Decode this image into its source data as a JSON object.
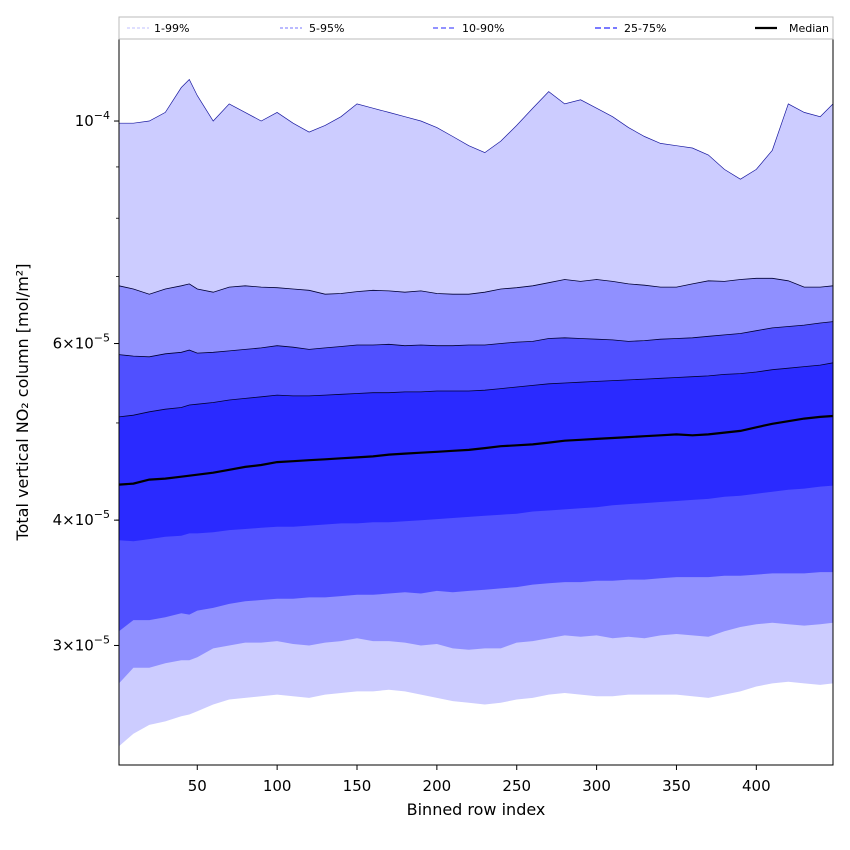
{
  "chart_data": {
    "type": "area",
    "title": "",
    "xlabel": "Binned row index",
    "ylabel": "Total vertical NO₂ column [mol/m²]",
    "yscale": "log",
    "xlim": [
      1,
      448
    ],
    "ylim": [
      2.28e-05,
      0.000121
    ],
    "xticks": [
      50,
      100,
      150,
      200,
      250,
      300,
      350,
      400
    ],
    "xtick_labels": [
      "50",
      "100",
      "150",
      "200",
      "250",
      "300",
      "350",
      "400"
    ],
    "yticks": [
      {
        "value": 0.0001,
        "mantissa": "",
        "base": "10",
        "exp": "−4"
      },
      {
        "value": 6e-05,
        "mantissa": "6",
        "base": "10",
        "exp": "−5"
      },
      {
        "value": 4e-05,
        "mantissa": "4",
        "base": "10",
        "exp": "−5"
      },
      {
        "value": 3e-05,
        "mantissa": "3",
        "base": "10",
        "exp": "−5"
      }
    ],
    "x": [
      1,
      10,
      20,
      30,
      40,
      45,
      50,
      60,
      70,
      80,
      90,
      100,
      110,
      120,
      130,
      140,
      150,
      160,
      170,
      180,
      190,
      200,
      210,
      220,
      230,
      240,
      250,
      260,
      270,
      280,
      290,
      300,
      310,
      320,
      330,
      340,
      350,
      360,
      370,
      380,
      390,
      400,
      410,
      420,
      430,
      440,
      448
    ],
    "bands": [
      {
        "name": "1-99%",
        "color": "#ccccff",
        "lower": [
          2.38e-05,
          2.45e-05,
          2.5e-05,
          2.52e-05,
          2.55e-05,
          2.56e-05,
          2.58e-05,
          2.62e-05,
          2.65e-05,
          2.66e-05,
          2.67e-05,
          2.68e-05,
          2.67e-05,
          2.66e-05,
          2.68e-05,
          2.69e-05,
          2.7e-05,
          2.7e-05,
          2.71e-05,
          2.7e-05,
          2.68e-05,
          2.66e-05,
          2.64e-05,
          2.63e-05,
          2.62e-05,
          2.63e-05,
          2.65e-05,
          2.66e-05,
          2.68e-05,
          2.69e-05,
          2.68e-05,
          2.67e-05,
          2.67e-05,
          2.68e-05,
          2.68e-05,
          2.68e-05,
          2.68e-05,
          2.67e-05,
          2.66e-05,
          2.68e-05,
          2.7e-05,
          2.73e-05,
          2.75e-05,
          2.76e-05,
          2.75e-05,
          2.74e-05,
          2.75e-05
        ],
        "upper": [
          9.95e-05,
          9.95e-05,
          0.0001,
          0.000102,
          0.000108,
          0.00011,
          0.000106,
          0.0001,
          0.000104,
          0.000102,
          0.0001,
          0.000102,
          9.95e-05,
          9.75e-05,
          9.9e-05,
          0.000101,
          0.000104,
          0.000103,
          0.000102,
          0.000101,
          0.0001,
          9.85e-05,
          9.65e-05,
          9.45e-05,
          9.3e-05,
          9.55e-05,
          9.9e-05,
          0.000103,
          0.000107,
          0.000104,
          0.000105,
          0.000103,
          0.000101,
          9.85e-05,
          9.65e-05,
          9.5e-05,
          9.45e-05,
          9.4e-05,
          9.25e-05,
          8.95e-05,
          8.75e-05,
          8.95e-05,
          9.35e-05,
          0.000104,
          0.000102,
          0.000101,
          0.000104
        ]
      },
      {
        "name": "5-95%",
        "color": "#9090ff",
        "lower": [
          2.75e-05,
          2.85e-05,
          2.85e-05,
          2.88e-05,
          2.9e-05,
          2.9e-05,
          2.92e-05,
          2.98e-05,
          3e-05,
          3.02e-05,
          3.02e-05,
          3.03e-05,
          3.01e-05,
          3e-05,
          3.02e-05,
          3.03e-05,
          3.05e-05,
          3.03e-05,
          3.03e-05,
          3.02e-05,
          3e-05,
          3.01e-05,
          2.98e-05,
          2.97e-05,
          2.98e-05,
          2.98e-05,
          3.02e-05,
          3.03e-05,
          3.05e-05,
          3.07e-05,
          3.06e-05,
          3.07e-05,
          3.05e-05,
          3.06e-05,
          3.05e-05,
          3.07e-05,
          3.08e-05,
          3.07e-05,
          3.06e-05,
          3.1e-05,
          3.13e-05,
          3.15e-05,
          3.16e-05,
          3.15e-05,
          3.14e-05,
          3.15e-05,
          3.16e-05
        ],
        "upper": [
          6.85e-05,
          6.8e-05,
          6.72e-05,
          6.8e-05,
          6.85e-05,
          6.88e-05,
          6.8e-05,
          6.75e-05,
          6.83e-05,
          6.85e-05,
          6.83e-05,
          6.82e-05,
          6.8e-05,
          6.78e-05,
          6.72e-05,
          6.73e-05,
          6.76e-05,
          6.78e-05,
          6.77e-05,
          6.75e-05,
          6.77e-05,
          6.73e-05,
          6.72e-05,
          6.72e-05,
          6.75e-05,
          6.8e-05,
          6.82e-05,
          6.85e-05,
          6.9e-05,
          6.95e-05,
          6.92e-05,
          6.95e-05,
          6.92e-05,
          6.88e-05,
          6.86e-05,
          6.83e-05,
          6.83e-05,
          6.88e-05,
          6.93e-05,
          6.92e-05,
          6.95e-05,
          6.97e-05,
          6.97e-05,
          6.93e-05,
          6.83e-05,
          6.83e-05,
          6.85e-05
        ]
      },
      {
        "name": "10-90%",
        "color": "#5050ff",
        "lower": [
          3.1e-05,
          3.18e-05,
          3.18e-05,
          3.2e-05,
          3.23e-05,
          3.22e-05,
          3.25e-05,
          3.27e-05,
          3.3e-05,
          3.32e-05,
          3.33e-05,
          3.34e-05,
          3.34e-05,
          3.35e-05,
          3.35e-05,
          3.36e-05,
          3.37e-05,
          3.37e-05,
          3.38e-05,
          3.39e-05,
          3.38e-05,
          3.4e-05,
          3.39e-05,
          3.4e-05,
          3.41e-05,
          3.42e-05,
          3.43e-05,
          3.45e-05,
          3.46e-05,
          3.47e-05,
          3.47e-05,
          3.48e-05,
          3.48e-05,
          3.49e-05,
          3.49e-05,
          3.5e-05,
          3.51e-05,
          3.51e-05,
          3.51e-05,
          3.52e-05,
          3.52e-05,
          3.53e-05,
          3.54e-05,
          3.54e-05,
          3.54e-05,
          3.55e-05,
          3.55e-05
        ],
        "upper": [
          5.85e-05,
          5.83e-05,
          5.82e-05,
          5.86e-05,
          5.88e-05,
          5.91e-05,
          5.87e-05,
          5.88e-05,
          5.9e-05,
          5.92e-05,
          5.94e-05,
          5.97e-05,
          5.95e-05,
          5.92e-05,
          5.94e-05,
          5.96e-05,
          5.98e-05,
          5.98e-05,
          5.99e-05,
          5.97e-05,
          5.98e-05,
          5.97e-05,
          5.97e-05,
          5.98e-05,
          5.98e-05,
          6e-05,
          6.02e-05,
          6.03e-05,
          6.07e-05,
          6.08e-05,
          6.07e-05,
          6.06e-05,
          6.05e-05,
          6.03e-05,
          6.04e-05,
          6.06e-05,
          6.07e-05,
          6.08e-05,
          6.1e-05,
          6.12e-05,
          6.14e-05,
          6.18e-05,
          6.22e-05,
          6.24e-05,
          6.26e-05,
          6.29e-05,
          6.31e-05
        ]
      },
      {
        "name": "25-75%",
        "color": "#2a2aff",
        "lower": [
          3.82e-05,
          3.81e-05,
          3.83e-05,
          3.85e-05,
          3.86e-05,
          3.88e-05,
          3.88e-05,
          3.89e-05,
          3.91e-05,
          3.92e-05,
          3.93e-05,
          3.94e-05,
          3.94e-05,
          3.95e-05,
          3.96e-05,
          3.97e-05,
          3.97e-05,
          3.98e-05,
          3.98e-05,
          3.99e-05,
          4e-05,
          4.01e-05,
          4.02e-05,
          4.03e-05,
          4.04e-05,
          4.05e-05,
          4.06e-05,
          4.08e-05,
          4.09e-05,
          4.1e-05,
          4.11e-05,
          4.12e-05,
          4.14e-05,
          4.15e-05,
          4.16e-05,
          4.17e-05,
          4.18e-05,
          4.19e-05,
          4.2e-05,
          4.22e-05,
          4.23e-05,
          4.25e-05,
          4.27e-05,
          4.29e-05,
          4.3e-05,
          4.32e-05,
          4.33e-05
        ],
        "upper": [
          5.07e-05,
          5.09e-05,
          5.13e-05,
          5.16e-05,
          5.18e-05,
          5.21e-05,
          5.22e-05,
          5.24e-05,
          5.27e-05,
          5.29e-05,
          5.31e-05,
          5.33e-05,
          5.32e-05,
          5.32e-05,
          5.33e-05,
          5.34e-05,
          5.35e-05,
          5.36e-05,
          5.36e-05,
          5.37e-05,
          5.37e-05,
          5.38e-05,
          5.38e-05,
          5.38e-05,
          5.39e-05,
          5.41e-05,
          5.43e-05,
          5.45e-05,
          5.47e-05,
          5.48e-05,
          5.49e-05,
          5.5e-05,
          5.51e-05,
          5.52e-05,
          5.53e-05,
          5.54e-05,
          5.55e-05,
          5.56e-05,
          5.57e-05,
          5.59e-05,
          5.6e-05,
          5.62e-05,
          5.65e-05,
          5.67e-05,
          5.69e-05,
          5.71e-05,
          5.74e-05
        ]
      }
    ],
    "median": {
      "name": "Median",
      "color": "#000000",
      "values": [
        4.34e-05,
        4.35e-05,
        4.39e-05,
        4.4e-05,
        4.42e-05,
        4.43e-05,
        4.44e-05,
        4.46e-05,
        4.49e-05,
        4.52e-05,
        4.54e-05,
        4.57e-05,
        4.58e-05,
        4.59e-05,
        4.6e-05,
        4.61e-05,
        4.62e-05,
        4.63e-05,
        4.65e-05,
        4.66e-05,
        4.67e-05,
        4.68e-05,
        4.69e-05,
        4.7e-05,
        4.72e-05,
        4.74e-05,
        4.75e-05,
        4.76e-05,
        4.78e-05,
        4.8e-05,
        4.81e-05,
        4.82e-05,
        4.83e-05,
        4.84e-05,
        4.85e-05,
        4.86e-05,
        4.87e-05,
        4.86e-05,
        4.87e-05,
        4.89e-05,
        4.91e-05,
        4.95e-05,
        4.99e-05,
        5.02e-05,
        5.05e-05,
        5.07e-05,
        5.08e-05
      ]
    },
    "legend": [
      {
        "label": "1-99%",
        "color": "#ccccff",
        "dash": "3,2"
      },
      {
        "label": "5-95%",
        "color": "#9090ff",
        "dash": "3,2"
      },
      {
        "label": "10-90%",
        "color": "#5050ff",
        "dash": "5,3"
      },
      {
        "label": "25-75%",
        "color": "#2a2aff",
        "dash": "6,3"
      },
      {
        "label": "Median",
        "color": "#000000",
        "dash": ""
      }
    ],
    "legend_position": "top"
  }
}
